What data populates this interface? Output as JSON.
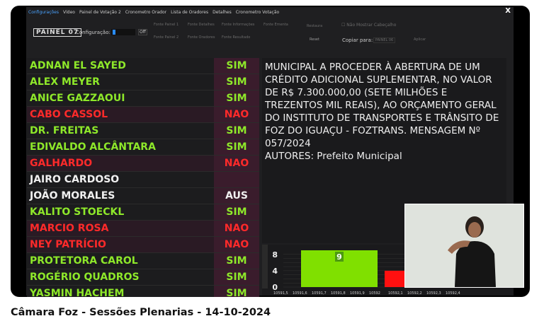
{
  "tabs": [
    "Configurações",
    "Vídeo",
    "Painel de Votação 2",
    "Cronometro Orador",
    "Lista de Oradores",
    "Detalhes",
    "Cronometro Votação"
  ],
  "close_label": "X",
  "toolbar": {
    "panel": "PAINEL 07",
    "config_label": "Configuração:",
    "off_label": "Off",
    "font_buttons": [
      "Fonte Painel 1",
      "Fonte Detalhes",
      "Fonte Informações",
      "Fonte Ementa",
      "Fonte Painel 2",
      "Fonte Oradores",
      "Fonte Resultado"
    ],
    "restore": "Restaura",
    "reset": "Reset",
    "hide_header": "Não Mostrar Cabeçalho",
    "copy_to": "Copiar para:",
    "copy_target": "PAINEL 06",
    "apply": "Aplicar"
  },
  "votes": [
    {
      "name": "ADNAN EL SAYED",
      "vote": "SIM",
      "color": "g"
    },
    {
      "name": "ALEX MEYER",
      "vote": "SIM",
      "color": "g"
    },
    {
      "name": "ANICE GAZZAOUI",
      "vote": "SIM",
      "color": "g"
    },
    {
      "name": "CABO CASSOL",
      "vote": "NAO",
      "color": "r"
    },
    {
      "name": "DR. FREITAS",
      "vote": "SIM",
      "color": "g"
    },
    {
      "name": "EDIVALDO ALCÂNTARA",
      "vote": "SIM",
      "color": "g"
    },
    {
      "name": "GALHARDO",
      "vote": "NAO",
      "color": "r"
    },
    {
      "name": "JAIRO CARDOSO",
      "vote": "",
      "color": "w"
    },
    {
      "name": "JOÃO MORALES",
      "vote": "AUS",
      "color": "w"
    },
    {
      "name": "KALITO STOECKL",
      "vote": "SIM",
      "color": "g"
    },
    {
      "name": "MARCIO ROSA",
      "vote": "NAO",
      "color": "r"
    },
    {
      "name": "NEY PATRÍCIO",
      "vote": "NAO",
      "color": "r"
    },
    {
      "name": "PROTETORA CAROL",
      "vote": "SIM",
      "color": "g"
    },
    {
      "name": "ROGÉRIO QUADROS",
      "vote": "SIM",
      "color": "g"
    },
    {
      "name": "YASMIN HACHEM",
      "vote": "SIM",
      "color": "g"
    }
  ],
  "details": {
    "body": "MUNICIPAL A PROCEDER À ABERTURA DE UM CRÉDITO ADICIONAL SUPLEMENTAR, NO VALOR DE R$ 7.300.000,00 (SETE MILHÕES E TREZENTOS MIL REAIS), AO ORÇAMENTO GERAL DO INSTITUTO DE TRANSPORTES E TRÂNSITO DE FOZ DO IGUAÇU - FOZTRANS. MENSAGEM Nº 057/2024",
    "authors": "AUTORES: Prefeito Municipal"
  },
  "chart_data": {
    "type": "bar",
    "yticks": [
      "8",
      "4",
      "0"
    ],
    "ylim": [
      0,
      9
    ],
    "xticks": [
      "10591,5",
      "10591,6",
      "10591,7",
      "10591,8",
      "10591,9",
      "10592",
      "10592,1",
      "10592,2",
      "10592,3",
      "10592,4"
    ],
    "series": [
      {
        "values": [
          9
        ],
        "color": "#80e000",
        "label": "9"
      },
      {
        "values": [
          4
        ],
        "color": "#ff1010"
      }
    ]
  },
  "caption": "Câmara Foz - Sessões Plenarias - 14-10-2024"
}
